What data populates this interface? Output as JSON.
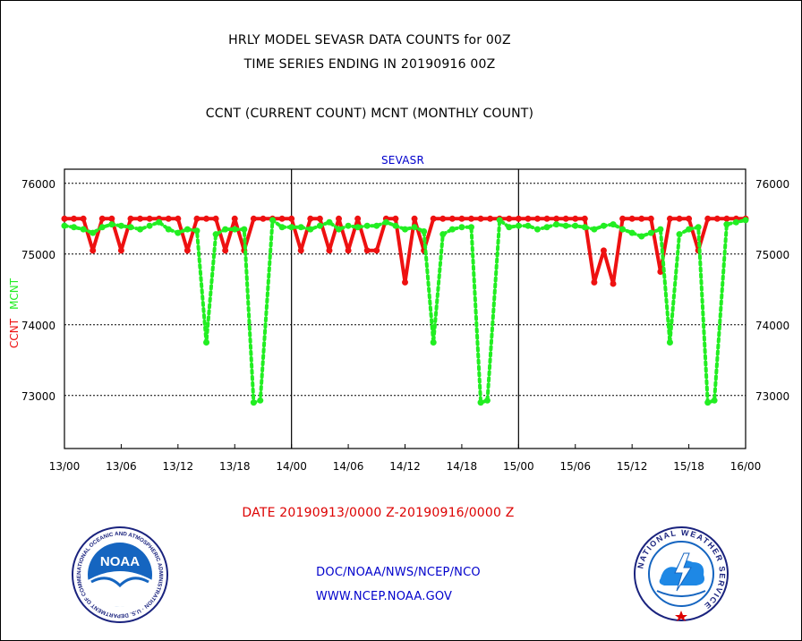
{
  "title": "HRLY MODEL SEVASR DATA COUNTS for 00Z",
  "subtitle": "TIME SERIES ENDING IN 20190916 00Z",
  "legend_text": "CCNT (CURRENT COUNT) MCNT (MONTHLY COUNT)",
  "panel_label": "SEVASR",
  "date_range": "DATE 20190913/0000 Z-20190916/0000 Z",
  "footer": {
    "org": "DOC/NOAA/NWS/NCEP/NCO",
    "url": "WWW.NCEP.NOAA.GOV"
  },
  "logos": {
    "noaa_text": "NOAA",
    "noaa_ring": "NATIONAL OCEANIC AND ATMOSPHERIC ADMINISTRATION · U.S. DEPARTMENT OF COMMERCE",
    "nws_ring": "NATIONAL WEATHER SERVICE"
  },
  "colors": {
    "ccnt": "#ee1111",
    "mcnt": "#22ee22",
    "label_blue": "#0000cc",
    "label_red": "#dd0000"
  },
  "chart_data": {
    "type": "line",
    "ylabel_ccnt": "CCNT",
    "ylabel_mcnt": "MCNT",
    "x_tick_labels": [
      "13/00",
      "13/06",
      "13/12",
      "13/18",
      "14/00",
      "14/06",
      "14/12",
      "14/18",
      "15/00",
      "15/06",
      "15/12",
      "15/18",
      "16/00"
    ],
    "x_ticks_hours": [
      0,
      6,
      12,
      18,
      24,
      30,
      36,
      42,
      48,
      54,
      60,
      66,
      72
    ],
    "y_tick_labels": [
      "73000",
      "74000",
      "75000",
      "76000"
    ],
    "y_ticks": [
      73000,
      74000,
      75000,
      76000
    ],
    "ylim": [
      72250,
      76200
    ],
    "xlim_hours": [
      0,
      72
    ],
    "grid": "horizontal",
    "series": [
      {
        "name": "CCNT",
        "x_hours": [
          0,
          1,
          2,
          3,
          4,
          5,
          6,
          7,
          8,
          9,
          10,
          11,
          12,
          13,
          14,
          15,
          16,
          17,
          18,
          19,
          20,
          21,
          22,
          23,
          24,
          25,
          26,
          27,
          28,
          29,
          30,
          31,
          32,
          33,
          34,
          35,
          36,
          37,
          38,
          39,
          40,
          41,
          42,
          43,
          44,
          45,
          46,
          47,
          48,
          49,
          50,
          51,
          52,
          53,
          54,
          55,
          56,
          57,
          58,
          59,
          60,
          61,
          62,
          63,
          64,
          65,
          66,
          67,
          68,
          69,
          70,
          71,
          72
        ],
        "values": [
          75500,
          75500,
          75500,
          75050,
          75500,
          75500,
          75050,
          75500,
          75500,
          75500,
          75500,
          75500,
          75500,
          75050,
          75500,
          75500,
          75500,
          75050,
          75500,
          75050,
          75500,
          75500,
          75500,
          75500,
          75500,
          75050,
          75500,
          75500,
          75050,
          75500,
          75050,
          75500,
          75050,
          75050,
          75500,
          75500,
          74600,
          75500,
          75050,
          75500,
          75500,
          75500,
          75500,
          75500,
          75500,
          75500,
          75500,
          75500,
          75500,
          75500,
          75500,
          75500,
          75500,
          75500,
          75500,
          75500,
          74600,
          75050,
          74580,
          75500,
          75500,
          75500,
          75500,
          74750,
          75500,
          75500,
          75500,
          75050,
          75500,
          75500,
          75500,
          75500,
          75500
        ]
      },
      {
        "name": "MCNT",
        "x_hours": [
          0,
          1,
          2,
          3,
          4,
          5,
          6,
          7,
          8,
          9,
          10,
          11,
          12,
          13,
          14,
          15,
          16,
          17,
          18,
          19,
          20,
          20.7,
          22,
          23,
          24,
          25,
          26,
          27,
          28,
          29,
          30,
          31,
          32,
          33,
          34,
          35,
          36,
          37,
          38,
          39,
          40,
          41,
          42,
          43,
          44,
          44.7,
          46,
          47,
          48,
          49,
          50,
          51,
          52,
          53,
          54,
          55,
          56,
          57,
          58,
          59,
          60,
          61,
          62,
          63,
          64,
          65,
          66,
          67,
          68,
          68.7,
          70,
          71,
          72
        ],
        "values": [
          75400,
          75380,
          75350,
          75300,
          75380,
          75420,
          75400,
          75380,
          75350,
          75400,
          75450,
          75350,
          75300,
          75350,
          75330,
          73750,
          75280,
          75350,
          75350,
          75350,
          72900,
          72930,
          75480,
          75380,
          75380,
          75380,
          75350,
          75400,
          75450,
          75350,
          75400,
          75380,
          75400,
          75400,
          75450,
          75400,
          75350,
          75380,
          75320,
          73750,
          75280,
          75350,
          75380,
          75380,
          72900,
          72930,
          75480,
          75380,
          75400,
          75400,
          75350,
          75380,
          75420,
          75400,
          75400,
          75380,
          75350,
          75400,
          75420,
          75350,
          75300,
          75250,
          75300,
          75350,
          73750,
          75280,
          75350,
          75380,
          72900,
          72930,
          75420,
          75450,
          75480
        ]
      }
    ]
  }
}
